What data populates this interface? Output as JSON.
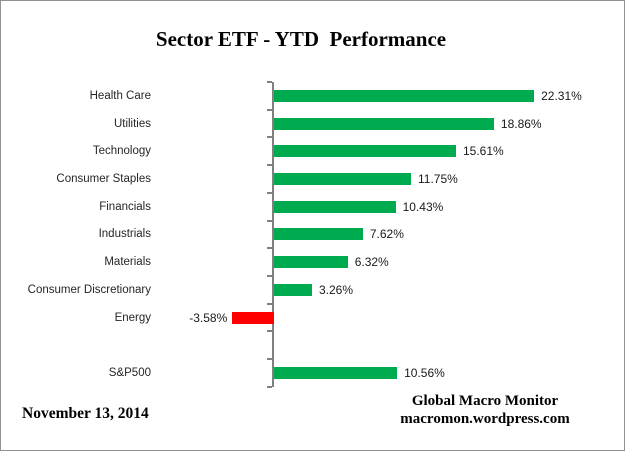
{
  "title": "Sector ETF - YTD  Performance",
  "footer": {
    "date": "November 13, 2014",
    "credit_line1": "Global Macro Monitor",
    "credit_line2": "macromon.wordpress.com"
  },
  "chart_data": {
    "type": "bar",
    "orientation": "horizontal",
    "title": "Sector ETF - YTD  Performance",
    "categories": [
      "Health Care",
      "Utilities",
      "Technology",
      "Consumer Staples",
      "Financials",
      "Industrials",
      "Materials",
      "Consumer Discretionary",
      "Energy",
      "",
      "S&P500"
    ],
    "values": [
      22.31,
      18.86,
      15.61,
      11.75,
      10.43,
      7.62,
      6.32,
      3.26,
      -3.58,
      null,
      10.56
    ],
    "value_labels": [
      "22.31%",
      "18.86%",
      "15.61%",
      "11.75%",
      "10.43%",
      "7.62%",
      "6.32%",
      "3.26%",
      "-3.58%",
      "",
      "10.56%"
    ],
    "xlabel": "",
    "ylabel": "",
    "xlim": [
      -10,
      30
    ],
    "grid": false,
    "legend": false,
    "colors": {
      "positive_bar": "#00AB4F",
      "negative_bar": "#FF0000",
      "axis": "#808080"
    }
  }
}
